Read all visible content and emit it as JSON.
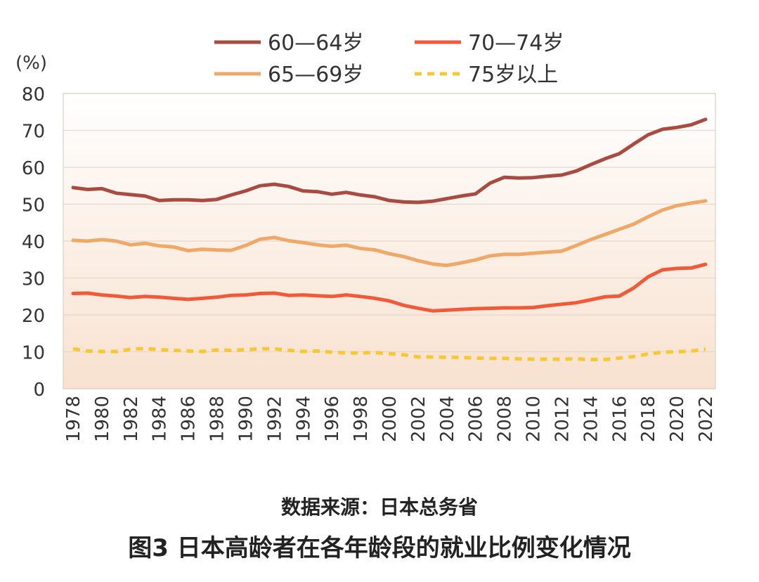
{
  "source_text": "数据来源：日本总务省",
  "caption_text": "图3  日本高龄者在各年龄段的就业比例变化情况",
  "chart_data": {
    "type": "line",
    "ylabel": "(%)",
    "ylim": [
      0,
      80
    ],
    "yticks": [
      0,
      10,
      20,
      30,
      40,
      50,
      60,
      70,
      80
    ],
    "xlim": [
      1978,
      2022
    ],
    "xticks": [
      1978,
      1980,
      1982,
      1984,
      1986,
      1988,
      1990,
      1992,
      1994,
      1996,
      1998,
      2000,
      2002,
      2004,
      2006,
      2008,
      2010,
      2012,
      2014,
      2016,
      2018,
      2020,
      2022
    ],
    "x": [
      1978,
      1979,
      1980,
      1981,
      1982,
      1983,
      1984,
      1985,
      1986,
      1987,
      1988,
      1989,
      1990,
      1991,
      1992,
      1993,
      1994,
      1995,
      1996,
      1997,
      1998,
      1999,
      2000,
      2001,
      2002,
      2003,
      2004,
      2005,
      2006,
      2007,
      2008,
      2009,
      2010,
      2011,
      2012,
      2013,
      2014,
      2015,
      2016,
      2017,
      2018,
      2019,
      2020,
      2021,
      2022
    ],
    "legend_position": "top",
    "series": [
      {
        "name": "60—64岁",
        "color": "#A84B41",
        "dashed": false,
        "values": [
          54.5,
          54.0,
          54.2,
          53.0,
          52.6,
          52.2,
          51.0,
          51.2,
          51.2,
          51.0,
          51.3,
          52.5,
          53.6,
          55.0,
          55.4,
          54.8,
          53.6,
          53.4,
          52.7,
          53.2,
          52.5,
          52.0,
          51.0,
          50.6,
          50.5,
          50.8,
          51.5,
          52.2,
          52.8,
          55.7,
          57.3,
          57.1,
          57.2,
          57.6,
          57.9,
          59.0,
          60.7,
          62.3,
          63.7,
          66.3,
          68.8,
          70.3,
          70.8,
          71.5,
          73.0
        ]
      },
      {
        "name": "65—69岁",
        "color": "#F0A868",
        "dashed": false,
        "values": [
          40.2,
          40.0,
          40.4,
          40.0,
          39.0,
          39.4,
          38.7,
          38.4,
          37.4,
          37.8,
          37.6,
          37.5,
          38.8,
          40.5,
          41.0,
          40.1,
          39.6,
          39.0,
          38.6,
          38.9,
          38.0,
          37.6,
          36.6,
          35.8,
          34.7,
          33.8,
          33.4,
          34.1,
          34.9,
          36.0,
          36.4,
          36.4,
          36.7,
          37.0,
          37.3,
          38.8,
          40.4,
          41.8,
          43.2,
          44.6,
          46.6,
          48.4,
          49.6,
          50.3,
          50.9
        ]
      },
      {
        "name": "70—74岁",
        "color": "#F05A38",
        "dashed": false,
        "values": [
          25.8,
          25.9,
          25.4,
          25.1,
          24.7,
          25.0,
          24.8,
          24.5,
          24.2,
          24.5,
          24.8,
          25.3,
          25.4,
          25.8,
          25.9,
          25.3,
          25.4,
          25.2,
          25.0,
          25.4,
          25.0,
          24.5,
          23.8,
          22.6,
          21.8,
          21.1,
          21.3,
          21.5,
          21.7,
          21.8,
          21.9,
          21.9,
          22.0,
          22.5,
          22.9,
          23.3,
          24.1,
          24.9,
          25.1,
          27.3,
          30.3,
          32.2,
          32.6,
          32.7,
          33.7
        ]
      },
      {
        "name": "75岁以上",
        "color": "#F7C834",
        "dashed": true,
        "values": [
          10.8,
          10.2,
          10.1,
          10.1,
          10.7,
          10.9,
          10.6,
          10.4,
          10.2,
          10.1,
          10.5,
          10.4,
          10.6,
          10.8,
          10.8,
          10.4,
          10.1,
          10.2,
          9.9,
          9.7,
          9.7,
          9.8,
          9.5,
          9.2,
          8.6,
          8.6,
          8.5,
          8.5,
          8.3,
          8.2,
          8.2,
          8.1,
          8.0,
          8.0,
          8.0,
          8.1,
          7.9,
          7.9,
          8.3,
          8.7,
          9.4,
          9.9,
          10.0,
          10.2,
          10.7
        ]
      }
    ]
  }
}
